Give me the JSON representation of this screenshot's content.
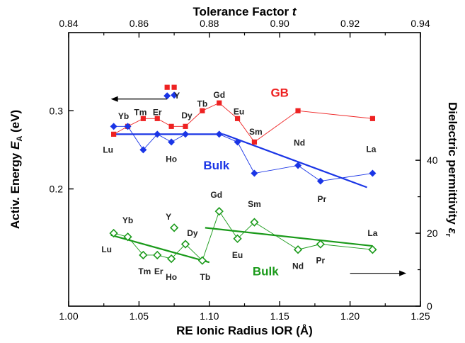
{
  "chart_data": {
    "type": "scatter",
    "title": "",
    "axes": {
      "bottom": {
        "label": "RE Ionic Radius IOR (Å)",
        "range": [
          1.0,
          1.25
        ],
        "ticks": [
          1.0,
          1.05,
          1.1,
          1.15,
          1.2,
          1.25
        ],
        "tick_labels": [
          "1.00",
          "1.05",
          "1.10",
          "1.15",
          "1.20",
          "1.25"
        ]
      },
      "top": {
        "label": "Tolerance Factor t",
        "range": [
          0.84,
          0.94
        ],
        "ticks": [
          0.84,
          0.86,
          0.88,
          0.9,
          0.92,
          0.94
        ],
        "tick_labels": [
          "0.84",
          "0.86",
          "0.88",
          "0.90",
          "0.92",
          "0.94"
        ]
      },
      "left": {
        "label": "Activ. Energy E",
        "label_subscript": "A",
        "label_unit": " (eV)",
        "range": [
          0.05,
          0.4
        ],
        "ticks": [
          0.2,
          0.3
        ],
        "tick_labels": [
          "0.2",
          "0.3"
        ]
      },
      "right": {
        "label": "Dielectric permittivity ε",
        "label_subscript": "r",
        "range": [
          0,
          75
        ],
        "ticks": [
          0,
          20,
          40
        ],
        "tick_labels": [
          "0",
          "20",
          "40"
        ]
      }
    },
    "grid": false,
    "legend": {
      "placement": "top-left",
      "entries": [
        {
          "name": "",
          "marker": "square",
          "color": "#ee2222"
        },
        {
          "name": "Y",
          "marker": "diamond",
          "color": "#1a35e6"
        }
      ]
    },
    "series": [
      {
        "name": "GB",
        "axis": "left",
        "color": "#ee2222",
        "marker": "square",
        "points": [
          {
            "x": 1.032,
            "y": 0.27
          },
          {
            "x": 1.042,
            "y": 0.28
          },
          {
            "x": 1.053,
            "y": 0.29
          },
          {
            "x": 1.063,
            "y": 0.29
          },
          {
            "x": 1.073,
            "y": 0.28
          },
          {
            "x": 1.083,
            "y": 0.28
          },
          {
            "x": 1.095,
            "y": 0.3
          },
          {
            "x": 1.107,
            "y": 0.31
          },
          {
            "x": 1.12,
            "y": 0.29
          },
          {
            "x": 1.132,
            "y": 0.26
          },
          {
            "x": 1.163,
            "y": 0.3
          },
          {
            "x": 1.216,
            "y": 0.29
          }
        ],
        "extra_points": [
          {
            "label": "Y",
            "x": 1.075,
            "y": 0.33
          }
        ]
      },
      {
        "name": "Bulk",
        "axis": "left",
        "color": "#1a35e6",
        "marker": "diamond",
        "points": [
          {
            "x": 1.032,
            "y": 0.28
          },
          {
            "x": 1.042,
            "y": 0.28
          },
          {
            "x": 1.053,
            "y": 0.25
          },
          {
            "x": 1.063,
            "y": 0.27
          },
          {
            "x": 1.073,
            "y": 0.26
          },
          {
            "x": 1.083,
            "y": 0.27
          },
          {
            "x": 1.107,
            "y": 0.27
          },
          {
            "x": 1.12,
            "y": 0.26
          },
          {
            "x": 1.132,
            "y": 0.22
          },
          {
            "x": 1.163,
            "y": 0.23
          },
          {
            "x": 1.179,
            "y": 0.21
          },
          {
            "x": 1.216,
            "y": 0.22
          }
        ],
        "extra_points": [
          {
            "label": "Y",
            "x": 1.075,
            "y": 0.32
          }
        ],
        "fits": [
          {
            "x": [
              1.032,
              1.11
            ],
            "y": [
              0.27,
              0.27
            ]
          },
          {
            "x": [
              1.11,
              1.212
            ],
            "y": [
              0.27,
              0.202
            ]
          }
        ]
      },
      {
        "name": "Bulk",
        "axis": "right",
        "color": "#1a9a1a",
        "marker": "diamond-open",
        "points": [
          {
            "x": 1.032,
            "y": 20
          },
          {
            "x": 1.042,
            "y": 19
          },
          {
            "x": 1.053,
            "y": 14
          },
          {
            "x": 1.063,
            "y": 14
          },
          {
            "x": 1.073,
            "y": 13
          },
          {
            "x": 1.083,
            "y": 17
          },
          {
            "x": 1.095,
            "y": 12.5
          },
          {
            "x": 1.107,
            "y": 26
          },
          {
            "x": 1.12,
            "y": 18.5
          },
          {
            "x": 1.132,
            "y": 23
          },
          {
            "x": 1.163,
            "y": 15.5
          },
          {
            "x": 1.179,
            "y": 17
          },
          {
            "x": 1.216,
            "y": 15.5
          }
        ],
        "extra_points": [
          {
            "label": "Y",
            "x": 1.075,
            "y": 21.5
          }
        ],
        "fits": [
          {
            "x": [
              1.03,
              1.1
            ],
            "y": [
              19.5,
              12
            ]
          },
          {
            "x": [
              1.097,
              1.216
            ],
            "y": [
              21.5,
              16.5
            ]
          }
        ]
      }
    ],
    "series_labels": [
      {
        "text": "GB",
        "series": 0,
        "x": 1.15,
        "y": 0.318
      },
      {
        "text": "Bulk",
        "series": 1,
        "x": 1.105,
        "y": 0.225
      },
      {
        "text": "Bulk",
        "series": 2,
        "x": 1.14,
        "y": 8.5
      }
    ],
    "point_labels": [
      {
        "text": "Lu",
        "x": 1.028,
        "y": 0.25,
        "axis": "left"
      },
      {
        "text": "Yb",
        "x": 1.039,
        "y": 0.293,
        "axis": "left"
      },
      {
        "text": "Tm",
        "x": 1.051,
        "y": 0.298,
        "axis": "left"
      },
      {
        "text": "Er",
        "x": 1.063,
        "y": 0.298,
        "axis": "left"
      },
      {
        "text": "Dy",
        "x": 1.084,
        "y": 0.294,
        "axis": "left"
      },
      {
        "text": "Tb",
        "x": 1.095,
        "y": 0.309,
        "axis": "left"
      },
      {
        "text": "Gd",
        "x": 1.107,
        "y": 0.32,
        "axis": "left"
      },
      {
        "text": "Eu",
        "x": 1.121,
        "y": 0.299,
        "axis": "left"
      },
      {
        "text": "Sm",
        "x": 1.133,
        "y": 0.273,
        "axis": "left"
      },
      {
        "text": "Ho",
        "x": 1.073,
        "y": 0.238,
        "axis": "left"
      },
      {
        "text": "Nd",
        "x": 1.164,
        "y": 0.259,
        "axis": "left"
      },
      {
        "text": "La",
        "x": 1.215,
        "y": 0.251,
        "axis": "left"
      },
      {
        "text": "Pr",
        "x": 1.18,
        "y": 0.187,
        "axis": "left"
      },
      {
        "text": "Lu",
        "x": 1.027,
        "y": 15.5,
        "axis": "right"
      },
      {
        "text": "Yb",
        "x": 1.042,
        "y": 23.5,
        "axis": "right"
      },
      {
        "text": "Tm",
        "x": 1.054,
        "y": 9.5,
        "axis": "right"
      },
      {
        "text": "Er",
        "x": 1.064,
        "y": 9.5,
        "axis": "right"
      },
      {
        "text": "Ho",
        "x": 1.073,
        "y": 8,
        "axis": "right"
      },
      {
        "text": "Y",
        "x": 1.071,
        "y": 24.5,
        "axis": "right"
      },
      {
        "text": "Dy",
        "x": 1.088,
        "y": 20,
        "axis": "right"
      },
      {
        "text": "Tb",
        "x": 1.097,
        "y": 8,
        "axis": "right"
      },
      {
        "text": "Gd",
        "x": 1.105,
        "y": 30.5,
        "axis": "right"
      },
      {
        "text": "Eu",
        "x": 1.12,
        "y": 14,
        "axis": "right"
      },
      {
        "text": "Sm",
        "x": 1.132,
        "y": 28,
        "axis": "right"
      },
      {
        "text": "Nd",
        "x": 1.163,
        "y": 11,
        "axis": "right"
      },
      {
        "text": "Pr",
        "x": 1.179,
        "y": 12.5,
        "axis": "right"
      },
      {
        "text": "La",
        "x": 1.216,
        "y": 20,
        "axis": "right"
      }
    ],
    "arrows": [
      {
        "direction": "left",
        "x": [
          1.031,
          1.07
        ],
        "y": 0.315,
        "axis": "left"
      },
      {
        "direction": "right",
        "x": [
          1.2,
          1.239
        ],
        "y": 9,
        "axis": "right"
      }
    ]
  }
}
